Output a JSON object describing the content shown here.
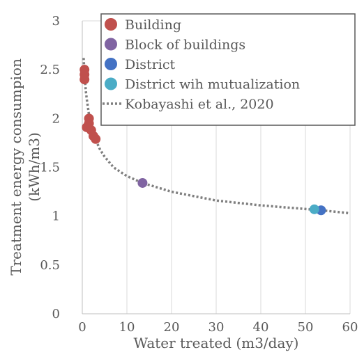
{
  "chart_data": {
    "type": "scatter",
    "xlabel": "Water treated (m3/day)",
    "ylabel_lines": [
      "Treatment energy consumpion",
      "(kWh/m3)"
    ],
    "xlim": [
      0,
      60
    ],
    "ylim": [
      0,
      3
    ],
    "x_ticks": [
      "0",
      "10",
      "20",
      "30",
      "40",
      "50",
      "60"
    ],
    "y_ticks": [
      "0",
      "0.5",
      "1",
      "1.5",
      "2",
      "2.5",
      "3"
    ],
    "grid": "vertical",
    "legend_position": "top-right",
    "series": [
      {
        "name": "Building",
        "color": "#c0504d",
        "points": [
          [
            0.5,
            2.5
          ],
          [
            0.5,
            2.45
          ],
          [
            0.5,
            2.4
          ],
          [
            1.5,
            2.0
          ],
          [
            1.5,
            1.95
          ],
          [
            1.0,
            1.91
          ],
          [
            2.0,
            1.88
          ],
          [
            2.5,
            1.82
          ],
          [
            3.0,
            1.79
          ]
        ]
      },
      {
        "name": "Block of buildings",
        "color": "#8064a2",
        "points": [
          [
            13.5,
            1.34
          ]
        ]
      },
      {
        "name": "District",
        "color": "#4472c4",
        "points": [
          [
            53.5,
            1.06
          ]
        ]
      },
      {
        "name": "District wih mutualization",
        "color": "#4bacc6",
        "points": [
          [
            52.0,
            1.07
          ]
        ]
      }
    ],
    "trendline": {
      "name": "Kobayashi et al., 2020",
      "color": "#7f7f7f",
      "style": "dotted",
      "x": [
        0.3,
        0.5,
        0.8,
        1,
        1.5,
        2,
        3,
        4,
        5,
        7,
        10,
        13.5,
        20,
        30,
        40,
        53.5,
        60
      ],
      "y": [
        2.62,
        2.45,
        2.28,
        2.2,
        2.04,
        1.93,
        1.78,
        1.68,
        1.61,
        1.5,
        1.41,
        1.34,
        1.25,
        1.16,
        1.11,
        1.06,
        1.03
      ]
    }
  }
}
